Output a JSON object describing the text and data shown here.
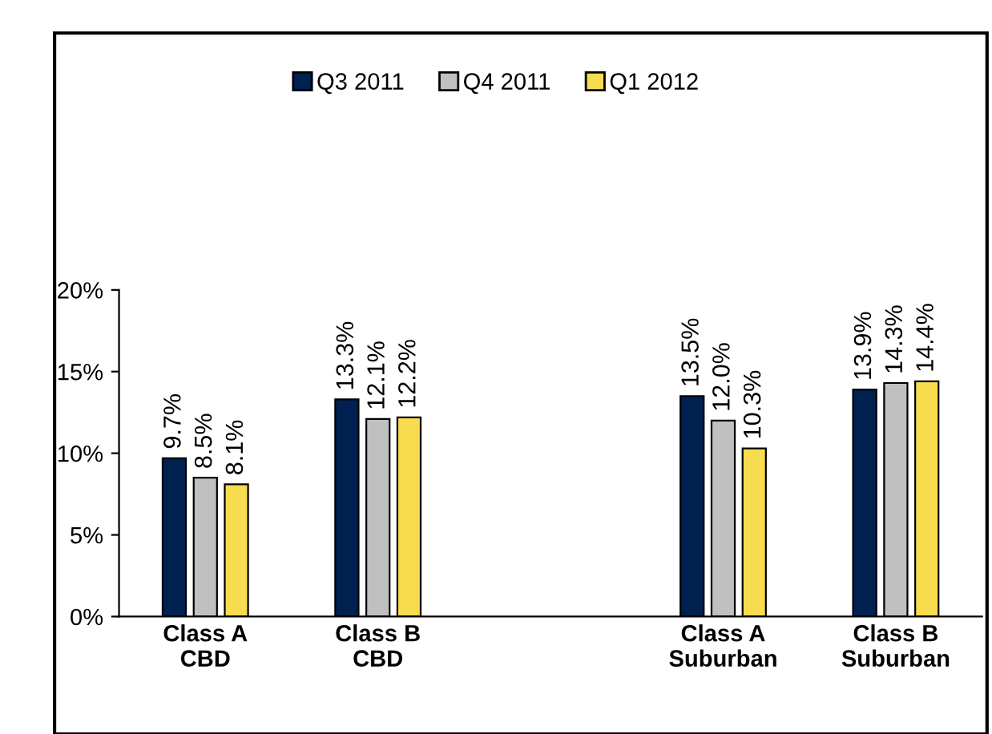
{
  "chart_data": {
    "type": "bar",
    "categories": [
      "Class A\nCBD",
      "Class B\nCBD",
      null,
      "Class A\nSuburban",
      "Class B\nSuburban"
    ],
    "series": [
      {
        "name": "Q3 2011",
        "color": "#002050",
        "values": [
          9.7,
          13.3,
          null,
          13.5,
          13.9
        ],
        "value_labels": [
          "9.7%",
          "13.3%",
          null,
          "13.5%",
          "13.9%"
        ]
      },
      {
        "name": "Q4 2011",
        "color": "#c0c0c0",
        "values": [
          8.5,
          12.1,
          null,
          12.0,
          14.3
        ],
        "value_labels": [
          "8.5%",
          "12.1%",
          null,
          "12.0%",
          "14.3%"
        ]
      },
      {
        "name": "Q1 2012",
        "color": "#f8dc50",
        "values": [
          8.1,
          12.2,
          null,
          10.3,
          14.4
        ],
        "value_labels": [
          "8.1%",
          "12.2%",
          null,
          "10.3%",
          "14.4%"
        ]
      }
    ],
    "ylim": [
      0,
      20
    ],
    "yticks": [
      {
        "value": 0,
        "label": "0%"
      },
      {
        "value": 5,
        "label": "5%"
      },
      {
        "value": 10,
        "label": "10%"
      },
      {
        "value": 15,
        "label": "15%"
      },
      {
        "value": 20,
        "label": "20%"
      }
    ],
    "grid": false,
    "legend": "top"
  }
}
